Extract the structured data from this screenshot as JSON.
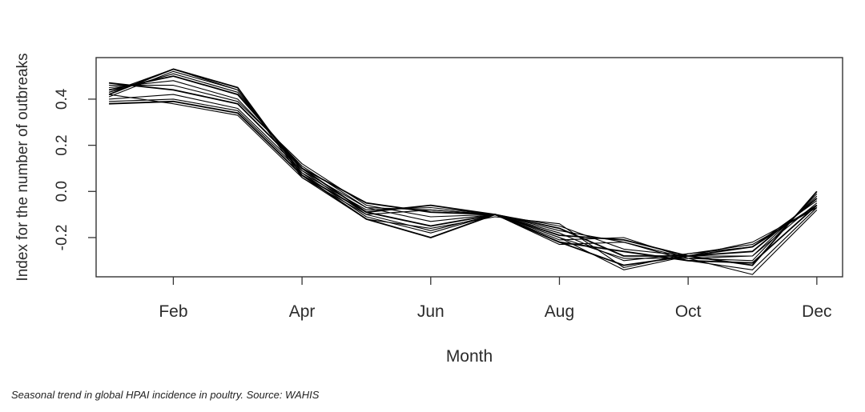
{
  "caption": "Seasonal trend in global HPAI incidence in poultry. Source: WAHIS",
  "chart_data": {
    "type": "line",
    "title": "",
    "xlabel": "Month",
    "ylabel": "Index for the number of outbreaks",
    "x": [
      1,
      2,
      3,
      4,
      5,
      6,
      7,
      8,
      9,
      10,
      11,
      12
    ],
    "x_ticks": [
      {
        "value": 2,
        "label": "Feb"
      },
      {
        "value": 4,
        "label": "Apr"
      },
      {
        "value": 6,
        "label": "Jun"
      },
      {
        "value": 8,
        "label": "Aug"
      },
      {
        "value": 10,
        "label": "Oct"
      },
      {
        "value": 12,
        "label": "Dec"
      }
    ],
    "y_ticks": [
      {
        "value": 0.4,
        "label": "0.4"
      },
      {
        "value": 0.2,
        "label": "0.2"
      },
      {
        "value": 0.0,
        "label": "0.0"
      },
      {
        "value": -0.2,
        "label": "-0.2"
      }
    ],
    "xlim": [
      0.8,
      12.4
    ],
    "ylim": [
      -0.37,
      0.58
    ],
    "grid": false,
    "line_color": "#000000",
    "series": [
      {
        "values": [
          0.42,
          0.53,
          0.45,
          0.07,
          -0.12,
          -0.2,
          -0.1,
          -0.22,
          -0.32,
          -0.28,
          -0.24,
          -0.06
        ]
      },
      {
        "values": [
          0.41,
          0.52,
          0.44,
          0.08,
          -0.11,
          -0.18,
          -0.1,
          -0.2,
          -0.34,
          -0.28,
          -0.22,
          -0.07
        ]
      },
      {
        "values": [
          0.43,
          0.51,
          0.43,
          0.09,
          -0.1,
          -0.17,
          -0.1,
          -0.18,
          -0.3,
          -0.27,
          -0.24,
          -0.04
        ]
      },
      {
        "values": [
          0.44,
          0.5,
          0.42,
          0.1,
          -0.09,
          -0.15,
          -0.1,
          -0.16,
          -0.28,
          -0.28,
          -0.26,
          -0.03
        ]
      },
      {
        "values": [
          0.45,
          0.48,
          0.4,
          0.11,
          -0.07,
          -0.13,
          -0.1,
          -0.15,
          -0.25,
          -0.28,
          -0.28,
          -0.02
        ]
      },
      {
        "values": [
          0.46,
          0.46,
          0.39,
          0.12,
          -0.06,
          -0.11,
          -0.1,
          -0.17,
          -0.22,
          -0.29,
          -0.3,
          -0.01
        ]
      },
      {
        "values": [
          0.47,
          0.44,
          0.38,
          0.1,
          -0.05,
          -0.09,
          -0.1,
          -0.19,
          -0.21,
          -0.28,
          -0.32,
          0.0
        ]
      },
      {
        "values": [
          0.4,
          0.42,
          0.36,
          0.09,
          -0.07,
          -0.08,
          -0.1,
          -0.21,
          -0.2,
          -0.29,
          -0.36,
          -0.08
        ]
      },
      {
        "values": [
          0.39,
          0.4,
          0.35,
          0.08,
          -0.08,
          -0.07,
          -0.1,
          -0.23,
          -0.22,
          -0.3,
          -0.34,
          -0.07
        ]
      },
      {
        "values": [
          0.38,
          0.39,
          0.34,
          0.07,
          -0.09,
          -0.06,
          -0.1,
          -0.22,
          -0.26,
          -0.3,
          -0.31,
          -0.06
        ]
      },
      {
        "values": [
          0.42,
          0.38,
          0.33,
          0.06,
          -0.1,
          -0.08,
          -0.1,
          -0.2,
          -0.29,
          -0.29,
          -0.28,
          -0.05
        ]
      },
      {
        "values": [
          0.43,
          0.53,
          0.44,
          0.06,
          -0.12,
          -0.16,
          -0.11,
          -0.14,
          -0.33,
          -0.27,
          -0.23,
          -0.07
        ]
      }
    ]
  }
}
